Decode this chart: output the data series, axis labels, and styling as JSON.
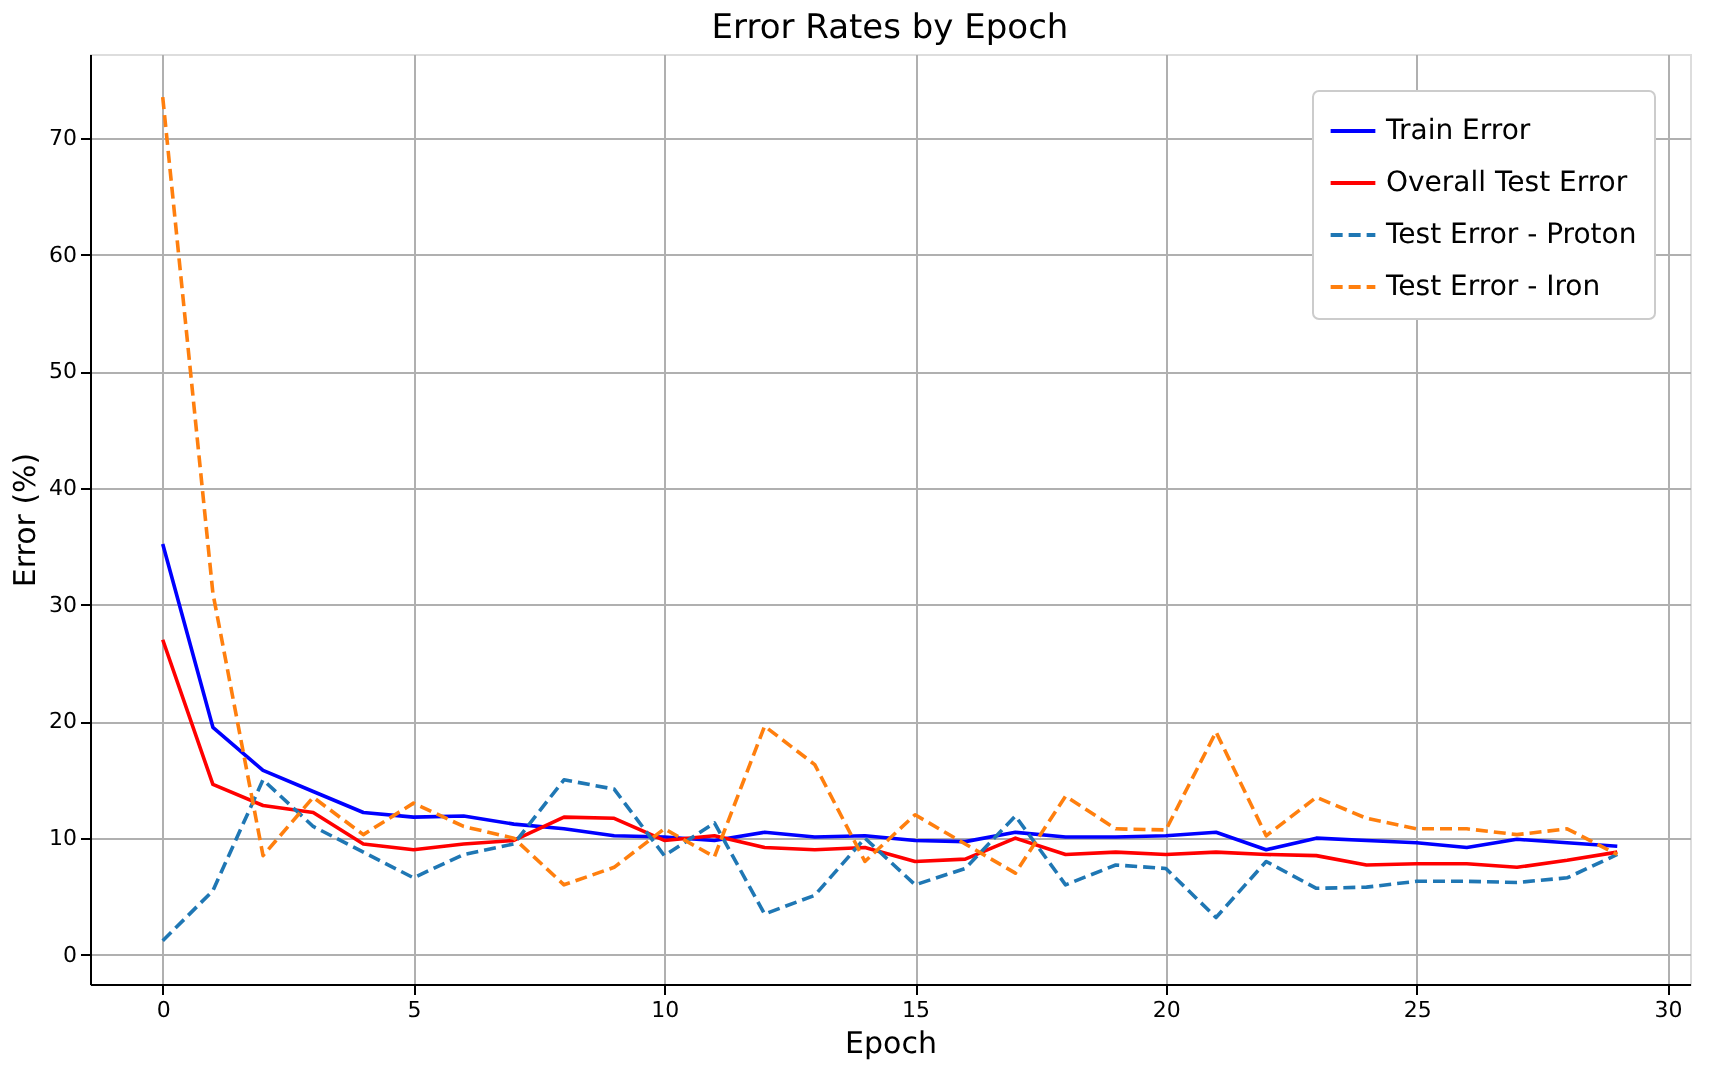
{
  "chart_data": {
    "type": "line",
    "title": "Error Rates by Epoch",
    "xlabel": "Epoch",
    "ylabel": "Error (%)",
    "x": [
      0,
      1,
      2,
      3,
      4,
      5,
      6,
      7,
      8,
      9,
      10,
      11,
      12,
      13,
      14,
      15,
      16,
      17,
      18,
      19,
      20,
      21,
      22,
      23,
      24,
      25,
      26,
      27,
      28,
      29
    ],
    "xlim": [
      -1.45,
      30.45
    ],
    "xticks": [
      0,
      5,
      10,
      15,
      20,
      25,
      30
    ],
    "ylim": [
      -2.5,
      77.2
    ],
    "yticks": [
      0,
      10,
      20,
      30,
      40,
      50,
      60,
      70
    ],
    "grid": true,
    "legend": "top right",
    "marker": "none",
    "series": [
      {
        "name": "Train Error",
        "color": "#0000ff",
        "line_style": "solid",
        "values": [
          35.2,
          19.5,
          15.8,
          14,
          12.2,
          11.8,
          11.9,
          11.2,
          10.8,
          10.2,
          10.1,
          9.8,
          10.5,
          10.1,
          10.2,
          9.8,
          9.7,
          10.5,
          10.1,
          10.1,
          10.2,
          10.5,
          9,
          10,
          9.8,
          9.6,
          9.2,
          9.9,
          9.6,
          9.3
        ]
      },
      {
        "name": "Overall Test Error",
        "color": "#ff0000",
        "line_style": "solid",
        "values": [
          27,
          14.6,
          12.8,
          12.2,
          9.5,
          9,
          9.5,
          9.8,
          11.8,
          11.7,
          9.8,
          10.2,
          9.2,
          9,
          9.2,
          8,
          8.2,
          10,
          8.6,
          8.8,
          8.6,
          8.8,
          8.6,
          8.5,
          7.7,
          7.8,
          7.8,
          7.5,
          8.1,
          8.8
        ]
      },
      {
        "name": "Test Error - Proton",
        "color": "#1f77b4",
        "line_style": "dashed",
        "values": [
          1.2,
          5.5,
          15,
          11,
          8.8,
          6.6,
          8.6,
          9.5,
          15,
          14.2,
          8.5,
          11.3,
          3.5,
          5.1,
          10,
          6,
          7.4,
          11.9,
          6,
          7.7,
          7.4,
          3.2,
          8,
          5.7,
          5.8,
          6.3,
          6.3,
          6.2,
          6.6,
          8.6
        ]
      },
      {
        "name": "Test Error - Iron",
        "color": "#ff7f0e",
        "line_style": "dashed",
        "values": [
          73.5,
          31,
          8.5,
          13.5,
          10.3,
          13,
          11,
          10,
          6,
          7.5,
          10.8,
          8.4,
          19.6,
          16.3,
          8,
          12,
          9.5,
          7,
          13.6,
          10.8,
          10.7,
          19.1,
          10.2,
          13.5,
          11.7,
          10.8,
          10.8,
          10.3,
          10.8,
          8.6
        ]
      }
    ]
  }
}
